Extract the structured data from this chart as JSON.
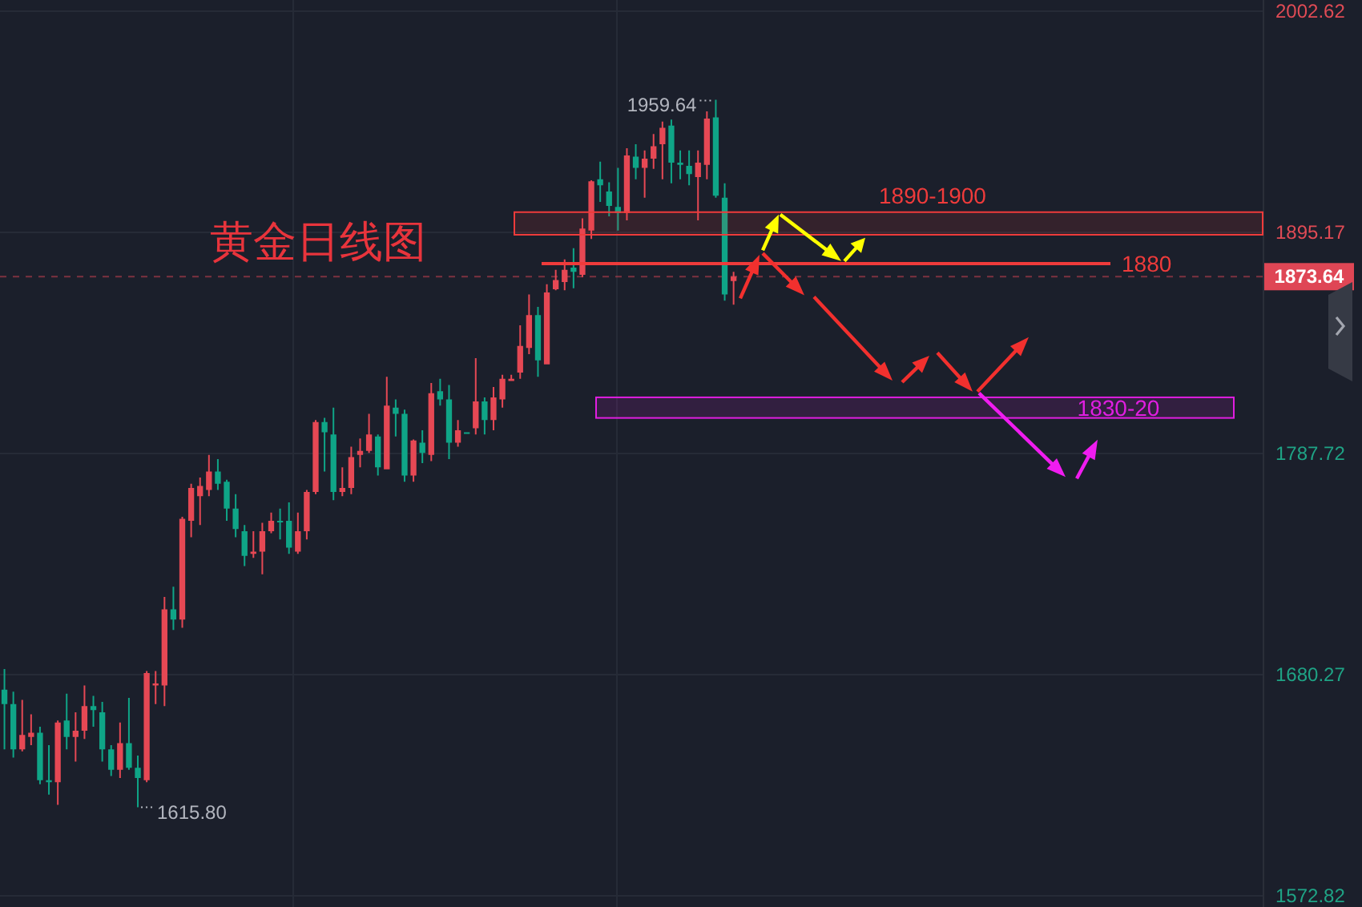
{
  "chart_data": {
    "type": "candlestick",
    "title": "黄金日线图",
    "categories": [
      null,
      null,
      null,
      null,
      null,
      null,
      null,
      null,
      null,
      null,
      null,
      null,
      null,
      null,
      null,
      null,
      null,
      null,
      null,
      null,
      null,
      null,
      null,
      null,
      null,
      null,
      null,
      null,
      null,
      null,
      null,
      null,
      null,
      null,
      null,
      null,
      null,
      null,
      null,
      null,
      null,
      null,
      null,
      null,
      null,
      null,
      null,
      null,
      null,
      null,
      null,
      null,
      null,
      null,
      null,
      null,
      null,
      null,
      null,
      null,
      null,
      null,
      null,
      null,
      null,
      null,
      null,
      null,
      null,
      null,
      null,
      null,
      null,
      null,
      null,
      null,
      null,
      null,
      null,
      null,
      null,
      null,
      null,
      null,
      null,
      null,
      null,
      null,
      null,
      null,
      null,
      null,
      null,
      null,
      null,
      null,
      null,
      null,
      null,
      null,
      null,
      null,
      null,
      null,
      null,
      null,
      null,
      null,
      null,
      null,
      null,
      null,
      null,
      null,
      null,
      null,
      null,
      null,
      null,
      null,
      null,
      null,
      null,
      null,
      null,
      null,
      null,
      null,
      null,
      null,
      null,
      null,
      null,
      null,
      null,
      null,
      null,
      null,
      null,
      null,
      null,
      null
    ],
    "ohlc": [
      [
        1673,
        1683,
        1644,
        1666
      ],
      [
        1666,
        1672,
        1640,
        1644
      ],
      [
        1644,
        1668,
        1643,
        1651
      ],
      [
        1650,
        1661,
        1646,
        1652
      ],
      [
        1652,
        1655,
        1627,
        1629
      ],
      [
        1629,
        1646,
        1622,
        1628
      ],
      [
        1628,
        1658,
        1617,
        1657
      ],
      [
        1658,
        1671,
        1644,
        1650
      ],
      [
        1650,
        1662,
        1638,
        1653
      ],
      [
        1653,
        1675,
        1649,
        1665
      ],
      [
        1665,
        1670,
        1655,
        1663
      ],
      [
        1662,
        1667,
        1638,
        1644
      ],
      [
        1644,
        1646,
        1631,
        1634
      ],
      [
        1634,
        1657,
        1630,
        1647
      ],
      [
        1647,
        1669,
        1634,
        1635
      ],
      [
        1635,
        1641,
        1615.8,
        1630
      ],
      [
        1629,
        1682,
        1628,
        1681
      ],
      [
        1675,
        1682,
        1666,
        1676
      ],
      [
        1675,
        1718,
        1665,
        1712
      ],
      [
        1712,
        1723,
        1702,
        1707
      ],
      [
        1707,
        1757,
        1703,
        1756
      ],
      [
        1755,
        1773,
        1747,
        1771
      ],
      [
        1767,
        1776,
        1753,
        1772
      ],
      [
        1770,
        1787,
        1767,
        1779
      ],
      [
        1779,
        1785,
        1770,
        1773
      ],
      [
        1774,
        1775,
        1755,
        1761
      ],
      [
        1761,
        1768,
        1747,
        1751
      ],
      [
        1750,
        1753,
        1733,
        1738
      ],
      [
        1739,
        1750,
        1737,
        1740
      ],
      [
        1740,
        1754,
        1729,
        1750
      ],
      [
        1750,
        1759,
        1749,
        1755
      ],
      [
        1755,
        1761,
        1746,
        1754.5
      ],
      [
        1755,
        1764,
        1739,
        1742
      ],
      [
        1740,
        1759,
        1739,
        1750
      ],
      [
        1750,
        1770,
        1746,
        1769
      ],
      [
        1769,
        1804,
        1768,
        1803
      ],
      [
        1803,
        1805,
        1779,
        1798
      ],
      [
        1797,
        1810,
        1765,
        1769
      ],
      [
        1769,
        1781,
        1767,
        1771
      ],
      [
        1771,
        1791,
        1768,
        1786
      ],
      [
        1787,
        1795,
        1781,
        1789
      ],
      [
        1789,
        1807,
        1788,
        1797
      ],
      [
        1796,
        1797,
        1777,
        1781
      ],
      [
        1780,
        1825,
        1780,
        1811
      ],
      [
        1810,
        1814,
        1796,
        1807
      ],
      [
        1807,
        1809,
        1774,
        1777
      ],
      [
        1777,
        1794.5,
        1774,
        1794
      ],
      [
        1793,
        1799,
        1783,
        1788
      ],
      [
        1787,
        1822,
        1784,
        1817
      ],
      [
        1818,
        1824,
        1811,
        1814
      ],
      [
        1814,
        1821,
        1785,
        1793
      ],
      [
        1793,
        1804,
        1791,
        1799
      ],
      [
        1798,
        1798,
        1797.5,
        1797.5
      ],
      [
        1800,
        1834,
        1797,
        1813
      ],
      [
        1813,
        1815,
        1797,
        1804
      ],
      [
        1804,
        1820,
        1799,
        1815
      ],
      [
        1814,
        1826,
        1810,
        1824
      ],
      [
        1823,
        1826,
        1823,
        1824
      ],
      [
        1827,
        1850,
        1824,
        1840
      ],
      [
        1839,
        1865,
        1836,
        1855
      ],
      [
        1855,
        1859,
        1825,
        1833
      ],
      [
        1831,
        1870,
        1831,
        1866
      ],
      [
        1867.5,
        1877,
        1867,
        1872
      ],
      [
        1871,
        1882,
        1867,
        1877
      ],
      [
        1878,
        1887.5,
        1868,
        1876
      ],
      [
        1874.5,
        1902,
        1873.5,
        1897
      ],
      [
        1896,
        1920.5,
        1892,
        1920
      ],
      [
        1921,
        1929.5,
        1910,
        1918
      ],
      [
        1915,
        1919.5,
        1903,
        1908
      ],
      [
        1907.5,
        1926.5,
        1896,
        1904.5
      ],
      [
        1904.5,
        1936,
        1901,
        1932.5
      ],
      [
        1932,
        1938,
        1921,
        1926.5
      ],
      [
        1926.5,
        1935,
        1912,
        1931
      ],
      [
        1931,
        1943,
        1926,
        1937
      ],
      [
        1938,
        1949,
        1921,
        1946
      ],
      [
        1947,
        1950,
        1919,
        1929
      ],
      [
        1929,
        1935,
        1921,
        1928
      ],
      [
        1927.5,
        1935,
        1918,
        1923.5
      ],
      [
        1922,
        1935,
        1901,
        1929
      ],
      [
        1928,
        1954,
        1921,
        1950.5
      ],
      [
        1951,
        1959.64,
        1912,
        1913
      ],
      [
        1912,
        1919,
        1862,
        1865
      ],
      [
        1871.5,
        1876,
        1860,
        1873.64
      ],
      null,
      null,
      null,
      null,
      null,
      null,
      null,
      null,
      null,
      null,
      null,
      null,
      null,
      null,
      null,
      null,
      null,
      null,
      null,
      null,
      null,
      null,
      null,
      null,
      null,
      null,
      null,
      null,
      null,
      null,
      null,
      null,
      null,
      null,
      null,
      null,
      null,
      null,
      null,
      null,
      null,
      null,
      null,
      null,
      null,
      null,
      null,
      null,
      null,
      null,
      null,
      null,
      null,
      null,
      null,
      null,
      null,
      null,
      null
    ],
    "colors": [
      "#0fa587",
      "#0fa587",
      "#e64854",
      "#e64854",
      "#0fa587",
      "#0fa587",
      "#e64854",
      "#0fa587",
      "#e64854",
      "#e64854",
      "#0fa587",
      "#0fa587",
      "#0fa587",
      "#e64854",
      "#0fa587",
      "#0fa587",
      "#e64854",
      "#e64854",
      "#e64854",
      "#0fa587",
      "#e64854",
      "#e64854",
      "#e64854",
      "#e64854",
      "#0fa587",
      "#0fa587",
      "#0fa587",
      "#0fa587",
      "#e64854",
      "#e64854",
      "#e64854",
      "#0fa587",
      "#0fa587",
      "#e64854",
      "#e64854",
      "#e64854",
      "#0fa587",
      "#0fa587",
      "#e64854",
      "#e64854",
      "#e64854",
      "#e64854",
      "#0fa587",
      "#e64854",
      "#0fa587",
      "#0fa587",
      "#e64854",
      "#0fa587",
      "#e64854",
      "#0fa587",
      "#0fa587",
      "#e64854",
      "#0fa587",
      "#e64854",
      "#0fa587",
      "#e64854",
      "#e64854",
      "#e64854",
      "#e64854",
      "#e64854",
      "#0fa587",
      "#e64854",
      "#e64854",
      "#e64854",
      "#0fa587",
      "#e64854",
      "#e64854",
      "#0fa587",
      "#0fa587",
      "#0fa587",
      "#e64854",
      "#0fa587",
      "#e64854",
      "#e64854",
      "#e64854",
      "#0fa587",
      "#0fa587",
      "#0fa587",
      "#e64854",
      "#e64854",
      "#0fa587",
      "#0fa587",
      "#e64854",
      null,
      null,
      null,
      null,
      null,
      null,
      null,
      null,
      null,
      null,
      null,
      null,
      null,
      null,
      null,
      null,
      null,
      null,
      null,
      null,
      null,
      null,
      null,
      null,
      null,
      null,
      null,
      null,
      null,
      null,
      null,
      null,
      null,
      null,
      null,
      null,
      null,
      null,
      null,
      null,
      null,
      null,
      null,
      null,
      null,
      null,
      null,
      null,
      null,
      null,
      null,
      null,
      null,
      null,
      null,
      null,
      null,
      null,
      null
    ],
    "ylim": [
      1572.82,
      2002.62
    ],
    "yticks": [
      1572.82,
      1680.27,
      1787.72,
      1895.17,
      2002.62
    ],
    "tick_labels": "y",
    "grid": true,
    "annotations": [
      "1959.64",
      "1615.80"
    ],
    "ref_lines": [
      {
        "axis": "y",
        "value": 1880,
        "label": "1880",
        "color": "#ef3b3b"
      },
      {
        "axis": "y",
        "value": 1873.64,
        "label": "1873.64",
        "color": "#df4655",
        "line_style": "dashed"
      }
    ],
    "bands": [
      {
        "axis": "y",
        "from": 1894,
        "to": 1905,
        "label": "1890-1900",
        "color": "#ef3b3b"
      },
      {
        "axis": "y",
        "from": 1805,
        "to": 1815,
        "label": "1830-20",
        "color": "#e11ee1"
      }
    ]
  }
}
